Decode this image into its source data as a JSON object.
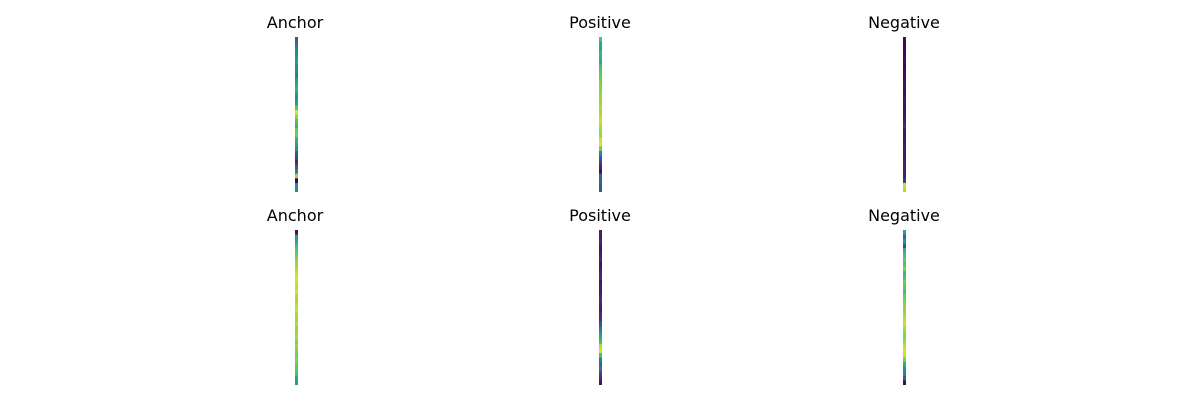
{
  "chart_data": {
    "type": "heatmap",
    "colormap": "viridis",
    "value_range": [
      0,
      1
    ],
    "panels": [
      {
        "title": "Anchor",
        "values": [
          0.28,
          0.38,
          0.44,
          0.48,
          0.52,
          0.57,
          0.5,
          0.47,
          0.44,
          0.55,
          0.62,
          0.66,
          0.56,
          0.5,
          0.58,
          0.73,
          0.94,
          0.83,
          0.72,
          0.66,
          0.76,
          0.78,
          0.65,
          0.6,
          0.52,
          0.3,
          0.2,
          0.12,
          0.3,
          0.45,
          0.85,
          0.0,
          0.48,
          0.5
        ]
      },
      {
        "title": "Positive",
        "values": [
          0.72,
          0.62,
          0.6,
          0.68,
          0.66,
          0.63,
          0.7,
          0.73,
          0.76,
          0.78,
          0.82,
          0.81,
          0.84,
          0.86,
          0.84,
          0.88,
          0.87,
          0.9,
          0.92,
          0.89,
          0.86,
          0.84,
          0.93,
          0.95,
          0.78,
          0.5,
          0.3,
          0.2,
          0.1,
          0.05,
          0.35,
          0.33,
          0.3,
          0.28
        ]
      },
      {
        "title": "Negative",
        "values": [
          0.03,
          0.02,
          0.01,
          0.02,
          0.03,
          0.02,
          0.01,
          0.03,
          0.02,
          0.04,
          0.05,
          0.03,
          0.04,
          0.05,
          0.06,
          0.05,
          0.04,
          0.06,
          0.08,
          0.12,
          0.07,
          0.05,
          0.06,
          0.07,
          0.08,
          0.06,
          0.07,
          0.09,
          0.1,
          0.09,
          0.08,
          0.15,
          0.92,
          0.88
        ]
      },
      {
        "title": "Anchor",
        "values": [
          0.04,
          0.55,
          0.6,
          0.7,
          0.74,
          0.78,
          0.82,
          0.86,
          0.88,
          0.92,
          0.95,
          0.93,
          0.91,
          0.94,
          0.89,
          0.87,
          0.9,
          0.92,
          0.88,
          0.86,
          0.89,
          0.84,
          0.85,
          0.88,
          0.82,
          0.84,
          0.8,
          0.78,
          0.82,
          0.76,
          0.74,
          0.7,
          0.6,
          0.55
        ]
      },
      {
        "title": "Positive",
        "values": [
          0.1,
          0.08,
          0.12,
          0.07,
          0.06,
          0.09,
          0.11,
          0.05,
          0.08,
          0.1,
          0.12,
          0.06,
          0.09,
          0.07,
          0.11,
          0.13,
          0.1,
          0.08,
          0.12,
          0.15,
          0.25,
          0.38,
          0.52,
          0.6,
          0.7,
          0.88,
          0.95,
          0.7,
          0.45,
          0.35,
          0.4,
          0.2,
          0.15,
          0.05
        ]
      },
      {
        "title": "Negative",
        "values": [
          0.6,
          0.35,
          0.55,
          0.25,
          0.65,
          0.7,
          0.75,
          0.72,
          0.8,
          0.68,
          0.72,
          0.78,
          0.74,
          0.7,
          0.76,
          0.8,
          0.82,
          0.84,
          0.86,
          0.9,
          0.92,
          0.88,
          0.84,
          0.82,
          0.86,
          0.9,
          0.94,
          0.92,
          0.78,
          0.62,
          0.5,
          0.45,
          0.3,
          0.02
        ]
      }
    ]
  }
}
